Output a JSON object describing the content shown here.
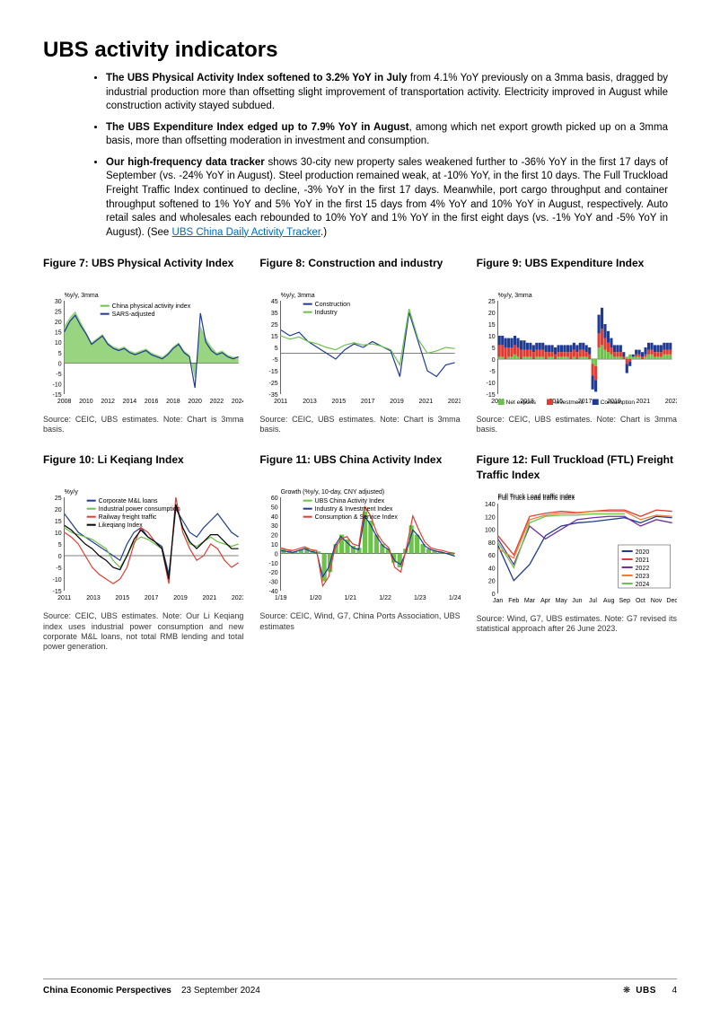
{
  "heading": "UBS activity indicators",
  "bullets": [
    {
      "bold": "The UBS Physical Activity Index softened to 3.2% YoY in July",
      "rest": " from 4.1% YoY previously on a 3mma basis, dragged by industrial production more than offsetting slight improvement of transportation activity. Electricity improved in August while construction activity stayed subdued."
    },
    {
      "bold": "The UBS Expenditure Index edged up to 7.9% YoY in August",
      "rest": ", among which net export growth picked up on a 3mma basis, more than offsetting moderation in investment and consumption."
    },
    {
      "bold": "Our high-frequency data tracker",
      "rest": " shows 30-city new property sales weakened further to -36% YoY in the first 17 days of September (vs. -24% YoY in August). Steel production remained weak, at -10% YoY, in the first 10 days. The Full Truckload Freight Traffic Index continued to decline, -3% YoY in the first 17 days. Meanwhile, port cargo throughput and container throughput softened to 1% YoY and 5% YoY in the first 15 days from 4% YoY and 10% YoY in August, respectively. Auto retail sales and wholesales each rebounded to 10% YoY and 1% YoY in the first eight days (vs. -1% YoY and -5% YoY in August). (See ",
      "link_text": "UBS China Daily Activity Tracker",
      "after_link": ".)"
    }
  ],
  "figures": {
    "fig7": {
      "title": "Figure 7: UBS Physical Activity Index",
      "source": "Source: CEIC, UBS estimates. Note: Chart is 3mma basis.",
      "type": "area+line",
      "ylabel": "%y/y, 3mma",
      "ylim": [
        -15,
        30
      ],
      "ytick_step": 5,
      "xticks": [
        "2008",
        "2010",
        "2012",
        "2014",
        "2016",
        "2018",
        "2020",
        "2022",
        "2024"
      ],
      "legend": [
        {
          "label": "China physical activity index",
          "color": "#6dc24b",
          "type": "area"
        },
        {
          "label": "SARS-adjusted",
          "color": "#1f3a93",
          "type": "line"
        }
      ],
      "area_values": [
        18,
        22,
        25,
        20,
        15,
        10,
        12,
        14,
        10,
        8,
        7,
        8,
        6,
        5,
        6,
        7,
        5,
        4,
        3,
        5,
        8,
        10,
        6,
        4,
        -8,
        18,
        12,
        8,
        5,
        6,
        4,
        3,
        3
      ],
      "line_values": [
        15,
        20,
        23,
        18,
        14,
        9,
        11,
        13,
        9,
        7,
        6,
        7,
        5,
        4,
        5,
        6,
        4,
        3,
        2,
        4,
        7,
        9,
        5,
        3,
        -12,
        24,
        10,
        6,
        4,
        5,
        3,
        2,
        3
      ],
      "label_fontsize": 7,
      "axis_color": "#000000",
      "background_color": "#ffffff"
    },
    "fig8": {
      "title": "Figure 8: Construction and industry",
      "source": "Source: CEIC, UBS estimates. Note: Chart is 3mma basis.",
      "type": "line",
      "ylabel": "%y/y, 3mma",
      "ylim": [
        -35,
        45
      ],
      "ytick_step": 10,
      "xticks": [
        "2011",
        "2013",
        "2015",
        "2017",
        "2019",
        "2021",
        "2023"
      ],
      "legend": [
        {
          "label": "Construction",
          "color": "#1f3a93"
        },
        {
          "label": "Industry",
          "color": "#6dc24b"
        }
      ],
      "series": {
        "Construction": [
          20,
          15,
          18,
          10,
          5,
          0,
          -5,
          3,
          8,
          5,
          10,
          6,
          2,
          -20,
          35,
          10,
          -15,
          -20,
          -10,
          -8
        ],
        "Industry": [
          15,
          12,
          14,
          10,
          8,
          5,
          3,
          7,
          9,
          7,
          8,
          6,
          3,
          -10,
          38,
          12,
          0,
          2,
          5,
          4
        ]
      },
      "label_fontsize": 7,
      "axis_color": "#000000",
      "background_color": "#ffffff"
    },
    "fig9": {
      "title": "Figure 9: UBS Expenditure Index",
      "source": "Source: CEIC, UBS estimates. Note: Chart is 3mma basis.",
      "type": "stacked-bar",
      "ylabel": "%y/y, 3mma",
      "ylim": [
        -15,
        25
      ],
      "ytick_step": 5,
      "xticks": [
        "2011",
        "2013",
        "2015",
        "2017",
        "2019",
        "2021",
        "2023"
      ],
      "legend": [
        {
          "label": "Net exports",
          "color": "#6dc24b"
        },
        {
          "label": "Investment",
          "color": "#e03c31"
        },
        {
          "label": "Consumption",
          "color": "#1f3a93"
        }
      ],
      "n_bars": 56,
      "stacks": {
        "Net exports": [
          1,
          1,
          0,
          1,
          1,
          2,
          1,
          0,
          1,
          1,
          1,
          0,
          1,
          1,
          1,
          0,
          1,
          1,
          0,
          1,
          1,
          1,
          1,
          0,
          1,
          0,
          1,
          1,
          1,
          0,
          -2,
          -3,
          5,
          6,
          4,
          3,
          2,
          1,
          1,
          1,
          0,
          1,
          2,
          1,
          1,
          1,
          0,
          1,
          2,
          2,
          1,
          1,
          1,
          2,
          2,
          2
        ],
        "Investment": [
          5,
          5,
          5,
          4,
          4,
          4,
          4,
          4,
          3,
          3,
          3,
          3,
          3,
          3,
          3,
          3,
          2,
          2,
          2,
          2,
          2,
          2,
          2,
          3,
          3,
          3,
          3,
          3,
          2,
          2,
          -5,
          -6,
          6,
          7,
          5,
          4,
          3,
          2,
          2,
          2,
          1,
          -2,
          -1,
          0,
          1,
          1,
          1,
          1,
          2,
          2,
          2,
          2,
          2,
          2,
          2,
          2
        ],
        "Consumption": [
          4,
          4,
          4,
          4,
          4,
          4,
          4,
          4,
          4,
          3,
          3,
          3,
          3,
          3,
          3,
          3,
          3,
          3,
          3,
          3,
          3,
          3,
          3,
          3,
          3,
          3,
          3,
          3,
          3,
          3,
          -6,
          -5,
          8,
          9,
          6,
          5,
          4,
          3,
          3,
          3,
          2,
          -4,
          -2,
          1,
          2,
          2,
          2,
          3,
          3,
          3,
          3,
          3,
          3,
          3,
          3,
          3
        ]
      },
      "label_fontsize": 7,
      "axis_color": "#000000",
      "background_color": "#ffffff"
    },
    "fig10": {
      "title": "Figure 10: Li Keqiang Index",
      "source": "Source: CEIC, UBS estimates. Note: Our Li Keqiang index uses industrial power consumption and new corporate M&L loans, not total RMB lending and total power generation.",
      "type": "line",
      "ylabel": "%y/y",
      "ylim": [
        -15,
        25
      ],
      "ytick_step": 5,
      "xticks": [
        "2011",
        "2013",
        "2015",
        "2017",
        "2019",
        "2021",
        "2023"
      ],
      "legend": [
        {
          "label": "Corporate M&L loans",
          "color": "#1f3a93"
        },
        {
          "label": "Industrial power consumption",
          "color": "#6dc24b"
        },
        {
          "label": "Railway freight traffic",
          "color": "#e03c31"
        },
        {
          "label": "Likeqiang Index",
          "color": "#000000"
        }
      ],
      "series": {
        "Corporate M&L loans": [
          18,
          14,
          10,
          8,
          6,
          4,
          2,
          0,
          -2,
          5,
          10,
          12,
          8,
          6,
          4,
          -8,
          20,
          15,
          10,
          8,
          12,
          15,
          18,
          14,
          10,
          8
        ],
        "Industrial power consumption": [
          12,
          10,
          9,
          8,
          7,
          5,
          3,
          -2,
          -5,
          0,
          6,
          8,
          7,
          5,
          3,
          -10,
          22,
          12,
          5,
          4,
          6,
          8,
          6,
          5,
          4,
          5
        ],
        "Railway freight traffic": [
          10,
          8,
          5,
          0,
          -5,
          -8,
          -10,
          -12,
          -10,
          -5,
          5,
          12,
          10,
          6,
          3,
          -12,
          25,
          10,
          3,
          -2,
          0,
          5,
          3,
          -2,
          -5,
          -3
        ],
        "Likeqiang Index": [
          13,
          11,
          8,
          5,
          3,
          0,
          -2,
          -5,
          -6,
          0,
          7,
          11,
          8,
          6,
          3,
          -10,
          22,
          12,
          6,
          3,
          6,
          9,
          9,
          6,
          3,
          3
        ]
      },
      "label_fontsize": 7,
      "axis_color": "#000000",
      "background_color": "#ffffff"
    },
    "fig11": {
      "title": "Figure 11: UBS China Activity Index",
      "source": "Source: CEIC, Wind, G7, China Ports Association, UBS estimates",
      "type": "bar+line",
      "ylabel": "Growth (%y/y, 10-day, CNY adjusted)",
      "ylim": [
        -40,
        60
      ],
      "ytick_step": 10,
      "xticks": [
        "1/19",
        "1/20",
        "1/21",
        "1/22",
        "1/23",
        "1/24"
      ],
      "legend": [
        {
          "label": "UBS China Activity Index",
          "color": "#6dc24b",
          "type": "bar"
        },
        {
          "label": "Industry & Investment Index",
          "color": "#1f3a93",
          "type": "line"
        },
        {
          "label": "Consumption & Service Index",
          "color": "#e03c31",
          "type": "line"
        }
      ],
      "bar_values": [
        5,
        3,
        2,
        4,
        6,
        3,
        2,
        -30,
        -20,
        10,
        20,
        15,
        8,
        6,
        45,
        35,
        20,
        10,
        5,
        -10,
        -15,
        5,
        30,
        20,
        10,
        5,
        3,
        2,
        0,
        -2
      ],
      "line1_values": [
        3,
        2,
        1,
        3,
        5,
        2,
        1,
        -25,
        -15,
        8,
        18,
        12,
        6,
        4,
        40,
        30,
        18,
        8,
        4,
        -8,
        -12,
        4,
        25,
        18,
        8,
        4,
        2,
        1,
        -1,
        -3
      ],
      "line2_values": [
        6,
        4,
        3,
        5,
        7,
        4,
        3,
        -35,
        -25,
        5,
        15,
        18,
        10,
        8,
        50,
        40,
        22,
        12,
        6,
        -15,
        -20,
        8,
        40,
        25,
        12,
        6,
        4,
        3,
        1,
        0
      ],
      "label_fontsize": 7,
      "axis_color": "#000000",
      "background_color": "#ffffff"
    },
    "fig12": {
      "title": "Figure 12: Full Truckload (FTL) Freight Traffic Index",
      "source": "Source: Wind, G7, UBS estimates. Note: G7 revised its statistical approach after 26 June 2023.",
      "type": "line",
      "ylabel": "Full Truck Load traffic index",
      "ylim": [
        0,
        140
      ],
      "ytick_step": 20,
      "xticks": [
        "Jan",
        "Feb",
        "Mar",
        "Apr",
        "May",
        "Jun",
        "Jul",
        "Aug",
        "Sep",
        "Oct",
        "Nov",
        "Dec"
      ],
      "legend": [
        {
          "label": "2020",
          "color": "#1f3a93"
        },
        {
          "label": "2021",
          "color": "#e03c31"
        },
        {
          "label": "2022",
          "color": "#7030a0"
        },
        {
          "label": "2023",
          "color": "#ed7d31"
        },
        {
          "label": "2024",
          "color": "#6dc24b"
        }
      ],
      "series": {
        "2020": [
          75,
          20,
          45,
          90,
          105,
          110,
          112,
          115,
          118,
          110,
          120,
          118
        ],
        "2021": [
          90,
          60,
          120,
          125,
          128,
          126,
          128,
          130,
          130,
          120,
          130,
          128
        ],
        "2022": [
          85,
          45,
          105,
          85,
          100,
          115,
          118,
          120,
          120,
          105,
          115,
          110
        ],
        "2023": [
          70,
          55,
          115,
          122,
          125,
          125,
          128,
          128,
          128,
          115,
          122,
          120
        ],
        "2024": [
          80,
          40,
          110,
          120,
          122,
          122,
          124,
          124,
          124
        ]
      },
      "label_fontsize": 7,
      "axis_color": "#000000",
      "background_color": "#ffffff"
    }
  },
  "footer": {
    "title": "China Economic Perspectives",
    "date": "23 September 2024",
    "brand": "UBS",
    "page": "4"
  }
}
